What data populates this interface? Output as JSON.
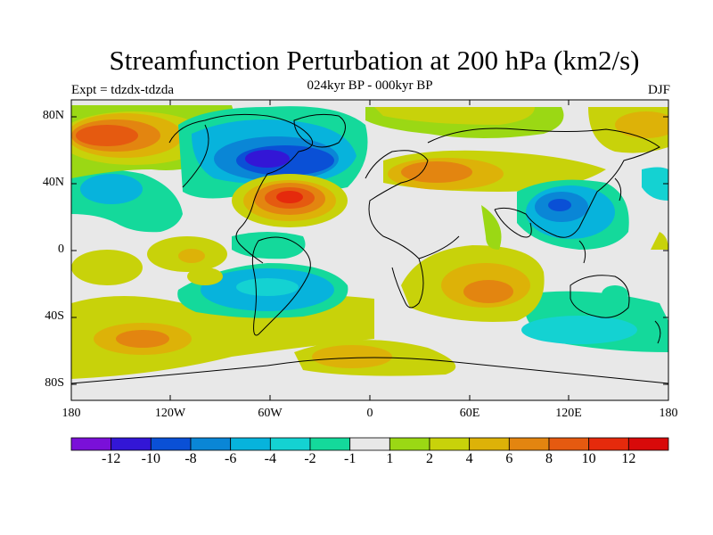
{
  "title": "Streamfunction Perturbation at 200 hPa (km2/s)",
  "subtitle": "024kyr BP - 000kyr BP",
  "left_label": "Expt = tdzdx-tdzda",
  "right_label": "DJF",
  "lat_labels": [
    "80N",
    "40N",
    "0",
    "40S",
    "80S"
  ],
  "lon_labels": [
    "180",
    "120W",
    "60W",
    "0",
    "60E",
    "120E",
    "180"
  ],
  "colorbar": {
    "labels": [
      "-12",
      "-10",
      "-8",
      "-6",
      "-4",
      "-2",
      "-1",
      "1",
      "2",
      "4",
      "6",
      "8",
      "10",
      "12"
    ],
    "colors": [
      "#7a10d8",
      "#3316d6",
      "#0a50d6",
      "#0a86d6",
      "#07b3dc",
      "#14d2d2",
      "#14d99b",
      "#e8e8e8",
      "#9bd814",
      "#c8d20a",
      "#ddb208",
      "#e38510",
      "#e55a10",
      "#e52a0c",
      "#d80a0a"
    ]
  },
  "colors": {
    "ocean_neutral": "#e8e8e8",
    "coastline": "#000000"
  }
}
